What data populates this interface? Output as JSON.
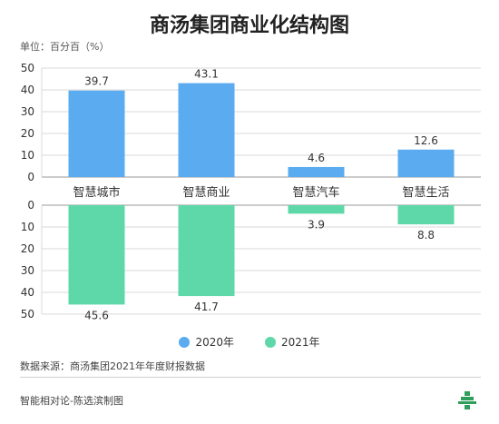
{
  "title": "商汤集团商业化结构图",
  "unit_label": "单位：百分百（%）",
  "source": "数据来源：商汤集团2021年年度财报数据",
  "footer": "智能相对论-陈选滨制图",
  "colors": {
    "series_2020": "#5AABEF",
    "series_2021": "#5FD8A9",
    "grid": "#d9d9d9",
    "axis": "#666666"
  },
  "chart_data": {
    "type": "bar",
    "categories": [
      "智慧城市",
      "智慧商业",
      "智慧汽车",
      "智慧生活"
    ],
    "series": [
      {
        "name": "2020年",
        "values": [
          39.7,
          43.1,
          4.6,
          12.6
        ],
        "direction": "up"
      },
      {
        "name": "2021年",
        "values": [
          45.6,
          41.7,
          3.9,
          8.8
        ],
        "direction": "down"
      }
    ],
    "ylim": [
      0,
      50
    ],
    "yticks": [
      0,
      10,
      20,
      30,
      40,
      50
    ],
    "legend": "bottom-center",
    "grid": true
  }
}
